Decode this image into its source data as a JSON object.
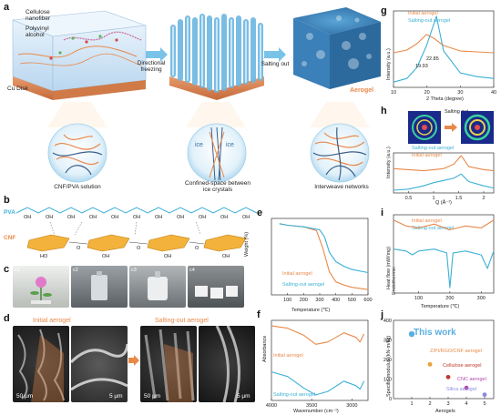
{
  "panels": {
    "a": {
      "label": "a",
      "materials": [
        "Cellulose nanofiber",
        "Polyvinyl alcohol"
      ],
      "cu_disk": "Cu Disk",
      "step1": "Directional freezing",
      "step2": "Salting out",
      "aerogel": "Aerogel",
      "ice_labels": [
        "ice",
        "ice"
      ],
      "captions": [
        "CNF/PVA solution",
        "Confined-space between ice crystals",
        "Interweave networks"
      ]
    },
    "b": {
      "label": "b",
      "pva": "PVA",
      "cnf": "CNF",
      "oh": "OH",
      "ho": "HO",
      "o": "O"
    },
    "c": {
      "label": "c",
      "sublabels": [
        "c1",
        "c2",
        "c3",
        "c4"
      ]
    },
    "d": {
      "label": "d",
      "initial": "Initial aerogel",
      "salting": "Salting-out aerogel",
      "scales": [
        "50 μm",
        "5 μm",
        "50 μm",
        "5 μm"
      ]
    },
    "e": {
      "label": "e",
      "ylabel": "Weight (%)",
      "xlabel": "Temperature (℃)",
      "legend": [
        "Initial aerogel",
        "Salting-out aerogel"
      ]
    },
    "f": {
      "label": "f",
      "ylabel": "Absorbance",
      "xlabel": "Wavenumber (cm⁻¹)",
      "legend": [
        "Initial aerogel",
        "Salting-out aerogel"
      ]
    },
    "g": {
      "label": "g",
      "ylabel": "Intensity (a.u.)",
      "xlabel": "2 Theta (degree)",
      "legend": [
        "Initial aerogel",
        "Salting-out aerogel"
      ],
      "annotations": [
        "22.85",
        "19.93"
      ]
    },
    "h": {
      "label": "h",
      "ylabel": "Intensity (a.u.)",
      "xlabel": "Q (Å⁻¹)",
      "legend": [
        "Salting-out aerogel",
        "Initial aerogel"
      ],
      "inset_arrow": "Salting out"
    },
    "i": {
      "label": "i",
      "ylabel": "Heat flow (mW/mg)",
      "ylabel2": "Endothermic",
      "xlabel": "Temperature (℃)",
      "legend": [
        "Initial aerogel",
        "Salting-out aerogel"
      ]
    },
    "j": {
      "label": "j",
      "ylabel": "Specific modulus (kN·m/kg)",
      "xlabel": "Aerogels",
      "points": [
        "This work",
        "Z/PI/RGO/CNF aerogel",
        "Cellulose aerogel",
        "CNC aerogel",
        "Silica aerogel"
      ]
    }
  },
  "colors": {
    "orange": "#e8894a",
    "blue": "#3cb0d6"
  },
  "chart_data": [
    {
      "type": "line",
      "panel": "e",
      "xlabel": "Temperature (℃)",
      "ylabel": "Weight (%)",
      "xlim": [
        0,
        600
      ],
      "x_ticks": [
        100,
        200,
        300,
        400,
        500,
        600
      ],
      "series": [
        {
          "name": "Initial aerogel",
          "x": [
            50,
            100,
            200,
            280,
            320,
            360,
            400,
            450,
            500,
            600
          ],
          "y": [
            97,
            95,
            93,
            88,
            65,
            35,
            22,
            18,
            15,
            12
          ]
        },
        {
          "name": "Salting-out aerogel",
          "x": [
            50,
            100,
            200,
            300,
            330,
            360,
            400,
            450,
            500,
            600
          ],
          "y": [
            97,
            95,
            93,
            89,
            80,
            60,
            48,
            42,
            38,
            34
          ]
        }
      ]
    },
    {
      "type": "line",
      "panel": "f",
      "xlabel": "Wavenumber (cm⁻¹)",
      "ylabel": "Absorbance",
      "xlim": [
        4000,
        2800
      ],
      "x_ticks": [
        4000,
        3500,
        3000
      ],
      "series": [
        {
          "name": "Initial aerogel",
          "x": [
            4000,
            3800,
            3600,
            3450,
            3300,
            3100,
            2950,
            2900,
            2850
          ],
          "y": [
            0.82,
            0.8,
            0.74,
            0.66,
            0.68,
            0.76,
            0.72,
            0.68,
            0.75
          ]
        },
        {
          "name": "Salting-out aerogel",
          "x": [
            4000,
            3800,
            3600,
            3450,
            3300,
            3100,
            2950,
            2900,
            2850
          ],
          "y": [
            0.42,
            0.38,
            0.28,
            0.22,
            0.25,
            0.34,
            0.3,
            0.27,
            0.34
          ]
        }
      ]
    },
    {
      "type": "line",
      "panel": "g",
      "xlabel": "2 Theta (degree)",
      "ylabel": "Intensity (a.u.)",
      "xlim": [
        10,
        40
      ],
      "x_ticks": [
        10,
        20,
        30,
        40
      ],
      "annotations": [
        "22.85",
        "19.93"
      ],
      "series": [
        {
          "name": "Initial aerogel",
          "x": [
            10,
            14,
            17,
            19.9,
            22,
            25,
            30,
            35,
            40
          ],
          "y": [
            0.42,
            0.45,
            0.52,
            0.62,
            0.58,
            0.5,
            0.44,
            0.43,
            0.42
          ]
        },
        {
          "name": "Salting-out aerogel",
          "x": [
            10,
            14,
            17,
            19.9,
            22.85,
            25,
            30,
            35,
            40
          ],
          "y": [
            0.1,
            0.14,
            0.26,
            0.5,
            0.82,
            0.44,
            0.2,
            0.16,
            0.14
          ]
        }
      ]
    },
    {
      "type": "line",
      "panel": "h",
      "xlabel": "Q (Å⁻¹)",
      "ylabel": "Intensity (a.u.)",
      "xlim": [
        0.2,
        2.2
      ],
      "x_ticks": [
        0.5,
        1.0,
        1.5,
        2.0
      ],
      "series": [
        {
          "name": "Salting-out aerogel",
          "x": [
            0.2,
            0.5,
            0.8,
            1.0,
            1.2,
            1.4,
            1.55,
            1.7,
            2.0,
            2.2
          ],
          "y": [
            0.62,
            0.6,
            0.58,
            0.6,
            0.62,
            0.7,
            0.86,
            0.66,
            0.6,
            0.58
          ]
        },
        {
          "name": "Initial aerogel",
          "x": [
            0.2,
            0.5,
            0.8,
            1.0,
            1.2,
            1.4,
            1.55,
            1.7,
            2.0,
            2.2
          ],
          "y": [
            0.22,
            0.24,
            0.3,
            0.36,
            0.4,
            0.44,
            0.52,
            0.38,
            0.3,
            0.26
          ]
        }
      ]
    },
    {
      "type": "line",
      "panel": "i",
      "xlabel": "Temperature (℃)",
      "ylabel": "Heat flow (mW/mg)",
      "xlim": [
        20,
        340
      ],
      "x_ticks": [
        100,
        200,
        300
      ],
      "series": [
        {
          "name": "Initial aerogel",
          "x": [
            20,
            60,
            100,
            150,
            200,
            250,
            300,
            340
          ],
          "y": [
            0.8,
            0.74,
            0.72,
            0.76,
            0.7,
            0.74,
            0.72,
            0.8
          ]
        },
        {
          "name": "Salting-out aerogel",
          "x": [
            20,
            60,
            70,
            80,
            100,
            150,
            190,
            200,
            210,
            250,
            300,
            320,
            340
          ],
          "y": [
            0.5,
            0.48,
            0.46,
            0.44,
            0.48,
            0.5,
            0.46,
            0.1,
            0.46,
            0.48,
            0.44,
            0.3,
            0.48
          ]
        }
      ]
    },
    {
      "type": "scatter",
      "panel": "j",
      "xlabel": "Aerogels",
      "ylabel": "Specific modulus (kN·m/kg)",
      "xlim": [
        0,
        5.5
      ],
      "ylim": [
        0,
        400
      ],
      "x_ticks": [
        1,
        2,
        3,
        4,
        5
      ],
      "y_ticks": [
        0,
        100,
        200,
        300,
        400
      ],
      "points": [
        {
          "label": "This work",
          "x": 1,
          "y": 330
        },
        {
          "label": "Z/PI/RGO/CNF aerogel",
          "x": 2,
          "y": 175
        },
        {
          "label": "Cellulose aerogel",
          "x": 3,
          "y": 110
        },
        {
          "label": "CNC aerogel",
          "x": 4,
          "y": 55
        },
        {
          "label": "Silica aerogel",
          "x": 5,
          "y": 20
        }
      ]
    }
  ]
}
